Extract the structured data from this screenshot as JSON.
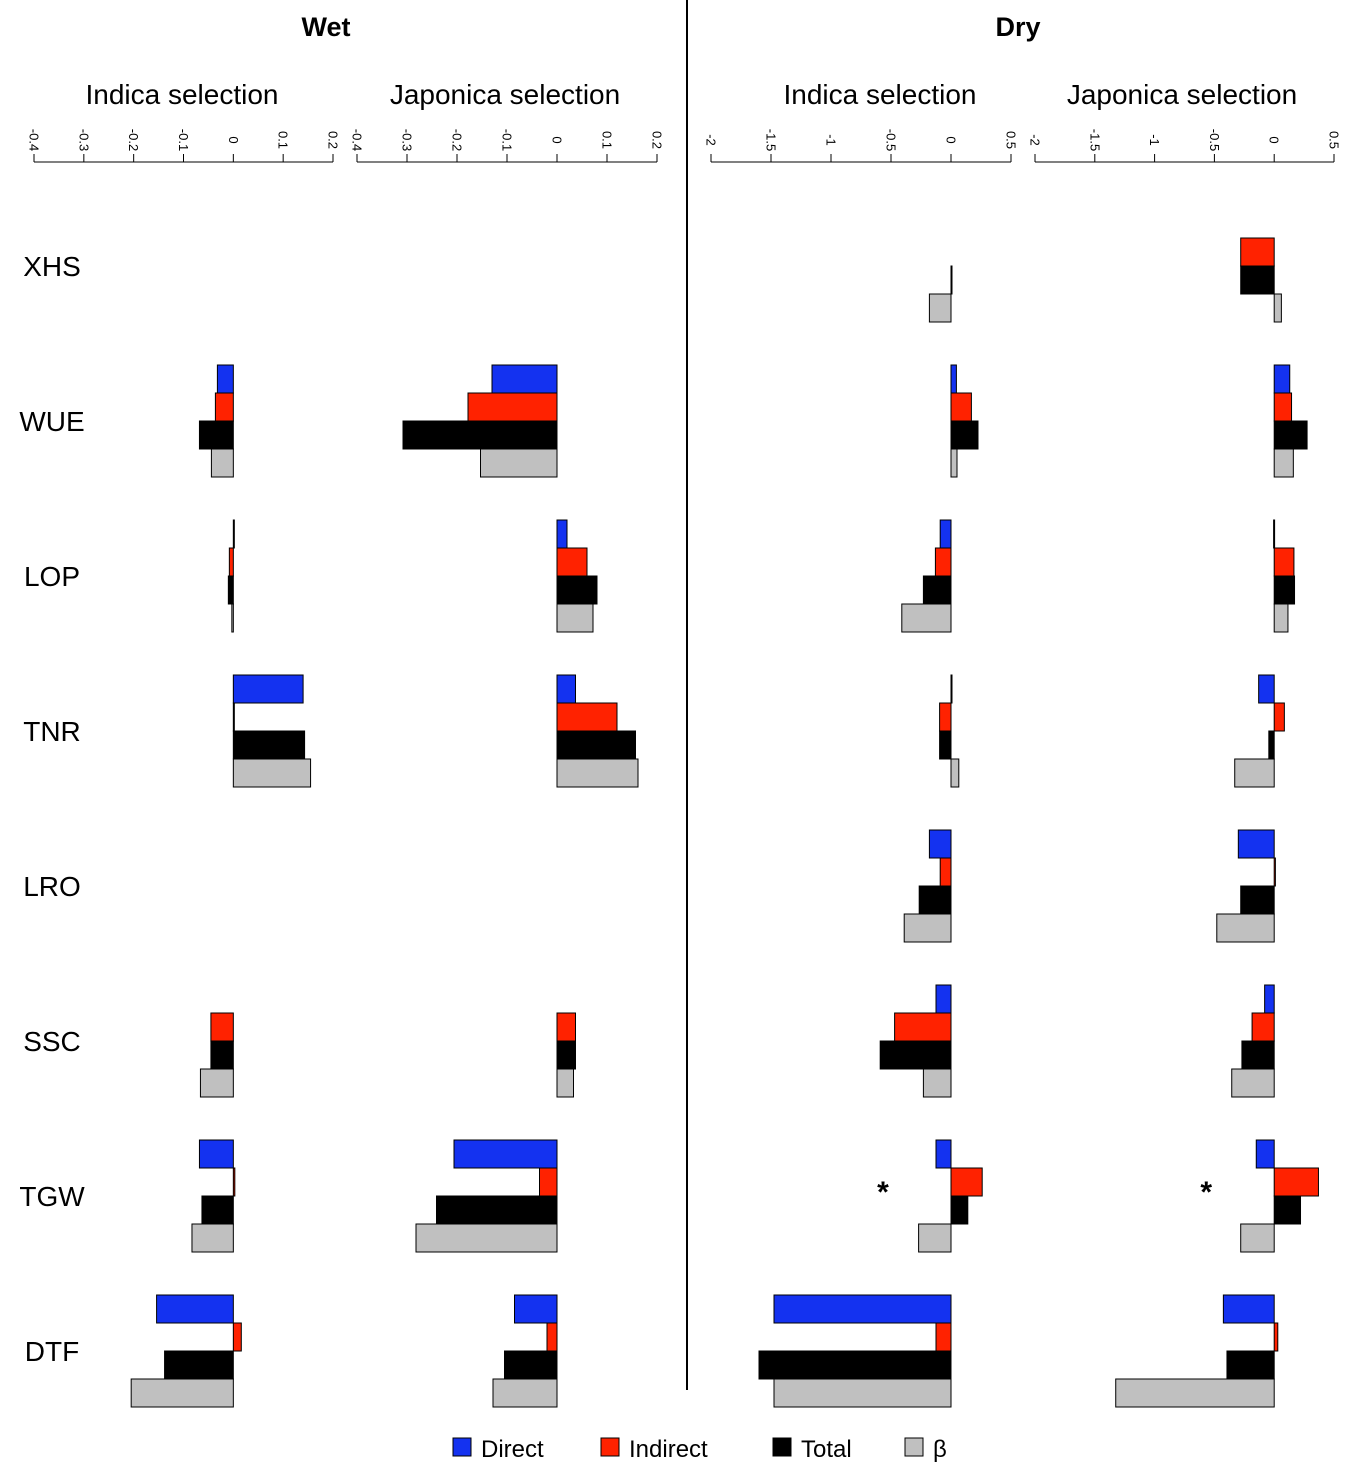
{
  "chart_data": {
    "type": "bar",
    "orientation": "horizontal",
    "grid": false,
    "legend_position": "bottom",
    "traits": [
      "XHS",
      "WUE",
      "LOP",
      "TNR",
      "LRO",
      "SSC",
      "TGW",
      "DTF"
    ],
    "series": [
      {
        "key": "direct",
        "name": "Direct",
        "color": "#1432f0"
      },
      {
        "key": "indirect",
        "name": "Indirect",
        "color": "#ff2200"
      },
      {
        "key": "total",
        "name": "Total",
        "color": "#000000"
      },
      {
        "key": "beta",
        "name": "β",
        "color": "#c0c0c0"
      }
    ],
    "conditions": [
      {
        "title": "Wet",
        "panels": [
          {
            "title": "Indica selection",
            "xlim": [
              -0.4,
              0.2
            ],
            "ticks": [
              -0.4,
              -0.3,
              -0.2,
              -0.1,
              0,
              0.1,
              0.2
            ],
            "tick_labels": [
              "-0.4",
              "-0.3",
              "-0.2",
              "-0.1",
              "0",
              "0.1",
              "0.2"
            ],
            "bars": [
              null,
              {
                "direct": -0.032,
                "indirect": -0.036,
                "total": -0.068,
                "beta": -0.044
              },
              {
                "direct": 0.001,
                "indirect": -0.008,
                "total": -0.01,
                "beta": -0.003
              },
              {
                "direct": 0.14,
                "indirect": 0.0,
                "total": 0.143,
                "beta": 0.155
              },
              null,
              {
                "direct": null,
                "indirect": -0.045,
                "total": -0.045,
                "beta": -0.066
              },
              {
                "direct": -0.068,
                "indirect": 0.003,
                "total": -0.063,
                "beta": -0.083
              },
              {
                "direct": -0.154,
                "indirect": 0.016,
                "total": -0.138,
                "beta": -0.205
              }
            ],
            "significant": []
          },
          {
            "title": "Japonica selection",
            "xlim": [
              -0.4,
              0.2
            ],
            "ticks": [
              -0.4,
              -0.3,
              -0.2,
              -0.1,
              0,
              0.1,
              0.2
            ],
            "tick_labels": [
              "-0.4",
              "-0.3",
              "-0.2",
              "-0.1",
              "0",
              "0.1",
              "0.2"
            ],
            "bars": [
              null,
              {
                "direct": -0.13,
                "indirect": -0.178,
                "total": -0.308,
                "beta": -0.153
              },
              {
                "direct": 0.02,
                "indirect": 0.06,
                "total": 0.08,
                "beta": 0.072
              },
              {
                "direct": 0.037,
                "indirect": 0.12,
                "total": 0.157,
                "beta": 0.162
              },
              null,
              {
                "direct": null,
                "indirect": 0.037,
                "total": 0.037,
                "beta": 0.033
              },
              {
                "direct": -0.206,
                "indirect": -0.035,
                "total": -0.241,
                "beta": -0.282
              },
              {
                "direct": -0.085,
                "indirect": -0.02,
                "total": -0.105,
                "beta": -0.128
              }
            ],
            "significant": []
          }
        ]
      },
      {
        "title": "Dry",
        "panels": [
          {
            "title": "Indica selection",
            "xlim": [
              -2,
              0.5
            ],
            "ticks": [
              -2,
              -1.5,
              -1,
              -0.5,
              0,
              0.5
            ],
            "tick_labels": [
              "-2",
              "-1.5",
              "-1",
              "-0.5",
              "0",
              "0.5"
            ],
            "bars": [
              {
                "direct": null,
                "indirect": null,
                "total": 0.005,
                "beta": -0.18
              },
              {
                "direct": 0.045,
                "indirect": 0.17,
                "total": 0.225,
                "beta": 0.05
              },
              {
                "direct": -0.09,
                "indirect": -0.13,
                "total": -0.23,
                "beta": -0.41
              },
              {
                "direct": 0.005,
                "indirect": -0.095,
                "total": -0.095,
                "beta": 0.065
              },
              {
                "direct": -0.18,
                "indirect": -0.09,
                "total": -0.265,
                "beta": -0.39
              },
              {
                "direct": -0.125,
                "indirect": -0.47,
                "total": -0.59,
                "beta": -0.23
              },
              {
                "direct": -0.125,
                "indirect": 0.26,
                "total": 0.14,
                "beta": -0.27
              },
              {
                "direct": -1.475,
                "indirect": -0.125,
                "total": -1.6,
                "beta": -1.475
              }
            ],
            "significant": [
              "TGW"
            ]
          },
          {
            "title": "Japonica selection",
            "xlim": [
              -2,
              0.5
            ],
            "ticks": [
              -2,
              -1.5,
              -1,
              -0.5,
              0,
              0.5
            ],
            "tick_labels": [
              "-2",
              "-1.5",
              "-1",
              "-0.5",
              "0",
              "0.5"
            ],
            "bars": [
              {
                "direct": null,
                "indirect": -0.28,
                "total": -0.28,
                "beta": 0.06
              },
              {
                "direct": 0.13,
                "indirect": 0.145,
                "total": 0.275,
                "beta": 0.16
              },
              {
                "direct": -0.005,
                "indirect": 0.165,
                "total": 0.17,
                "beta": 0.115
              },
              {
                "direct": -0.13,
                "indirect": 0.085,
                "total": -0.045,
                "beta": -0.33
              },
              {
                "direct": -0.3,
                "indirect": 0.01,
                "total": -0.28,
                "beta": -0.48
              },
              {
                "direct": -0.08,
                "indirect": -0.185,
                "total": -0.27,
                "beta": -0.355
              },
              {
                "direct": -0.15,
                "indirect": 0.37,
                "total": 0.22,
                "beta": -0.28
              },
              {
                "direct": -0.425,
                "indirect": 0.03,
                "total": -0.395,
                "beta": -1.325
              }
            ],
            "significant": [
              "TGW"
            ]
          }
        ]
      }
    ],
    "significance_marker": "*"
  }
}
